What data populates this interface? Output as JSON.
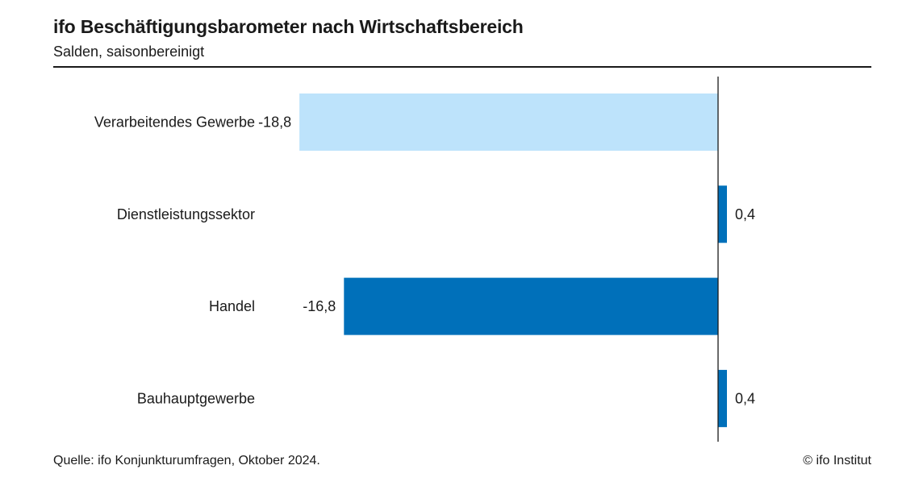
{
  "header": {
    "title": "ifo Beschäftigungsbarometer nach Wirtschaftsbereich",
    "subtitle": "Salden, saisonbereinigt"
  },
  "footer": {
    "source": "Quelle: ifo Konjunkturumfragen, Oktober 2024.",
    "copyright": "© ifo Institut"
  },
  "chart_data": {
    "type": "bar",
    "orientation": "horizontal",
    "title": "ifo Beschäftigungsbarometer nach Wirtschaftsbereich",
    "subtitle": "Salden, saisonbereinigt",
    "categories": [
      "Verarbeitendes Gewerbe",
      "Dienstleistungssektor",
      "Handel",
      "Bauhauptgewerbe"
    ],
    "values": [
      -18.8,
      0.4,
      -16.8,
      0.4
    ],
    "value_labels": [
      "-18,8",
      "0,4",
      "-16,8",
      "0,4"
    ],
    "bar_colors": [
      "#bde3fb",
      "#0070ba",
      "#0070ba",
      "#0070ba"
    ],
    "xlim": [
      -18.8,
      0.4
    ],
    "grid": false,
    "legend": "none"
  }
}
